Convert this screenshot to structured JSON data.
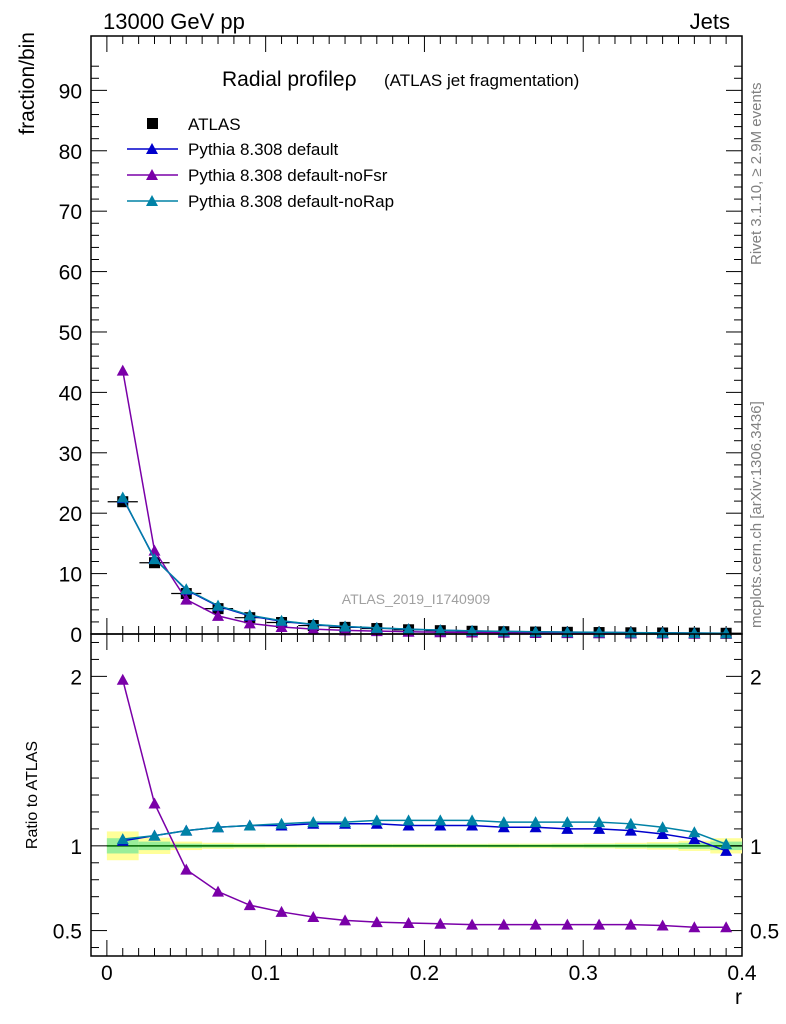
{
  "header": {
    "left": "13000 GeV pp",
    "right": "Jets"
  },
  "side_labels": {
    "rivet": "Rivet 3.1.10, ≥ 2.9M events",
    "mcplots": "mcplots.cern.ch [arXiv:1306.3436]"
  },
  "watermark": "ATLAS_2019_I1740909",
  "colors": {
    "atlas": "#000000",
    "default": "#0000cc",
    "noFsr": "#7a00a8",
    "noRap": "#0082a6",
    "band_outer": "#ffff99",
    "band_inner": "#99ee99",
    "ref_line": "#006400"
  },
  "chart_data": [
    {
      "type": "scatter",
      "title": "Radial profileρ (ATLAS jet fragmentation)",
      "title_main": "Radial profileρ",
      "title_sub": "(ATLAS jet fragmentation)",
      "ylabel": "fraction/bin",
      "xlim": [
        -0.01,
        0.4
      ],
      "ylim": [
        0,
        99
      ],
      "grid": false,
      "legend": "top-left",
      "x": [
        0.01,
        0.03,
        0.05,
        0.07,
        0.09,
        0.11,
        0.13,
        0.15,
        0.17,
        0.19,
        0.21,
        0.23,
        0.25,
        0.27,
        0.29,
        0.31,
        0.33,
        0.35,
        0.37,
        0.39
      ],
      "x_ticks": [
        "0",
        "0.1",
        "0.2",
        "0.3",
        "0.4"
      ],
      "y_ticks": [
        "0",
        "10",
        "20",
        "30",
        "40",
        "50",
        "60",
        "70",
        "80",
        "90"
      ],
      "series": [
        {
          "name": "ATLAS",
          "marker": "square",
          "values": [
            21.9,
            11.8,
            6.7,
            4.2,
            2.7,
            1.9,
            1.4,
            1.1,
            0.9,
            0.7,
            0.55,
            0.45,
            0.38,
            0.32,
            0.28,
            0.24,
            0.2,
            0.17,
            0.14,
            0.12
          ]
        },
        {
          "name": "Pythia 8.308 default",
          "values": [
            22.5,
            12.5,
            7.3,
            4.6,
            3.0,
            2.1,
            1.55,
            1.2,
            1.0,
            0.78,
            0.62,
            0.5,
            0.42,
            0.36,
            0.31,
            0.27,
            0.22,
            0.19,
            0.15,
            0.12
          ]
        },
        {
          "name": "Pythia 8.308 default-noFsr",
          "values": [
            43.6,
            13.8,
            5.7,
            3.0,
            1.75,
            1.15,
            0.8,
            0.6,
            0.48,
            0.38,
            0.3,
            0.24,
            0.2,
            0.17,
            0.15,
            0.13,
            0.11,
            0.09,
            0.07,
            0.06
          ]
        },
        {
          "name": "Pythia 8.308 default-noRap",
          "values": [
            22.6,
            12.4,
            7.4,
            4.7,
            3.1,
            2.2,
            1.6,
            1.25,
            1.02,
            0.8,
            0.64,
            0.52,
            0.44,
            0.37,
            0.32,
            0.28,
            0.23,
            0.19,
            0.16,
            0.13
          ]
        }
      ]
    },
    {
      "type": "line",
      "xlabel": "r",
      "ylabel": "Ratio to ATLAS",
      "xlim": [
        -0.01,
        0.4
      ],
      "ylim": [
        0.35,
        2.25
      ],
      "x_ticks": [
        "0",
        "0.1",
        "0.2",
        "0.3",
        "0.4"
      ],
      "y_ticks": [
        "0.5",
        "1",
        "2"
      ],
      "x": [
        0.01,
        0.03,
        0.05,
        0.07,
        0.09,
        0.11,
        0.13,
        0.15,
        0.17,
        0.19,
        0.21,
        0.23,
        0.25,
        0.27,
        0.29,
        0.31,
        0.33,
        0.35,
        0.37,
        0.39
      ],
      "band_outer": [
        0.085,
        0.048,
        0.025,
        0.018,
        0.015,
        0.013,
        0.012,
        0.012,
        0.012,
        0.012,
        0.012,
        0.012,
        0.013,
        0.013,
        0.014,
        0.015,
        0.018,
        0.022,
        0.03,
        0.045
      ],
      "band_inner": [
        0.045,
        0.025,
        0.013,
        0.01,
        0.009,
        0.008,
        0.008,
        0.008,
        0.008,
        0.008,
        0.008,
        0.008,
        0.008,
        0.008,
        0.009,
        0.01,
        0.011,
        0.013,
        0.018,
        0.025
      ],
      "series": [
        {
          "name": "Pythia 8.308 default",
          "values": [
            1.03,
            1.06,
            1.09,
            1.11,
            1.12,
            1.12,
            1.13,
            1.13,
            1.13,
            1.12,
            1.12,
            1.12,
            1.11,
            1.11,
            1.1,
            1.1,
            1.09,
            1.07,
            1.04,
            0.97
          ]
        },
        {
          "name": "Pythia 8.308 default-noFsr",
          "values": [
            1.98,
            1.25,
            0.86,
            0.73,
            0.65,
            0.61,
            0.58,
            0.56,
            0.55,
            0.545,
            0.54,
            0.535,
            0.535,
            0.535,
            0.535,
            0.535,
            0.535,
            0.53,
            0.52,
            0.52
          ]
        },
        {
          "name": "Pythia 8.308 default-noRap",
          "values": [
            1.04,
            1.06,
            1.09,
            1.11,
            1.12,
            1.13,
            1.14,
            1.14,
            1.15,
            1.15,
            1.15,
            1.15,
            1.14,
            1.14,
            1.14,
            1.14,
            1.13,
            1.11,
            1.08,
            1.01
          ]
        }
      ]
    }
  ]
}
